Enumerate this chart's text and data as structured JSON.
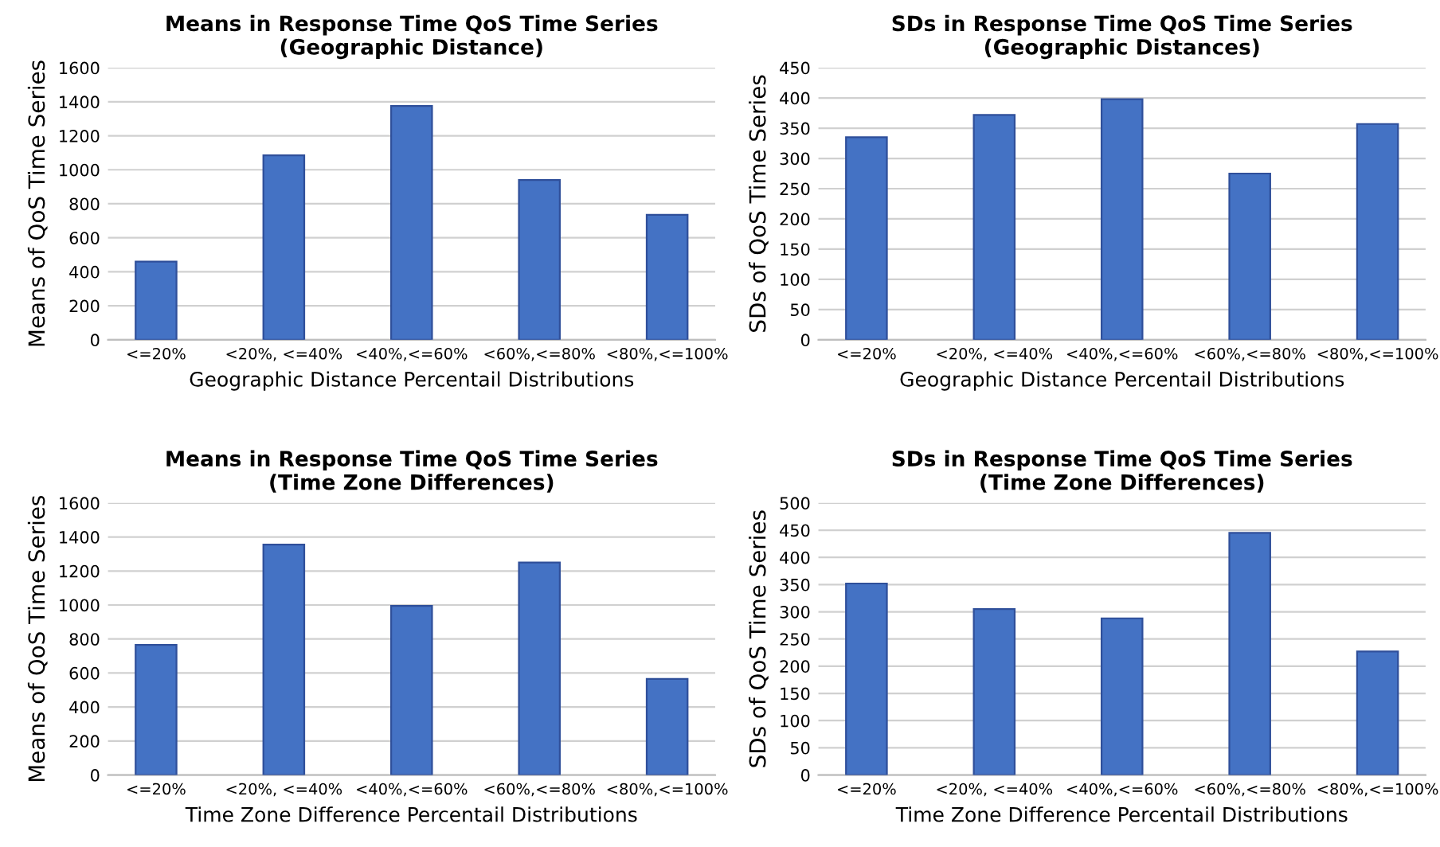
{
  "chart_data": [
    {
      "type": "bar",
      "title": "Means in Response Time QoS Time Series\n(Geographic Distance)",
      "xlabel": "Geographic Distance Percentail Distributions",
      "ylabel": "Means of QoS Time Series",
      "categories": [
        "<=20%",
        "<20%, <=40%",
        "<40%,<=60%",
        "<60%,<=80%",
        "<80%,<=100%"
      ],
      "values": [
        460,
        1085,
        1375,
        940,
        735
      ],
      "color": "#4472c4",
      "ylim": [
        0,
        1600
      ],
      "yticks": [
        0,
        200,
        400,
        600,
        800,
        1000,
        1200,
        1400,
        1600
      ],
      "grid": "y"
    },
    {
      "type": "bar",
      "title": "SDs in Response Time QoS Time Series\n(Geographic Distances)",
      "xlabel": "Geographic Distance Percentail Distributions",
      "ylabel": "SDs of QoS Time Series",
      "categories": [
        "<=20%",
        "<20%, <=40%",
        "<40%,<=60%",
        "<60%,<=80%",
        "<80%,<=100%"
      ],
      "values": [
        335,
        372,
        398,
        275,
        357
      ],
      "color": "#4472c4",
      "ylim": [
        0,
        450
      ],
      "yticks": [
        0,
        50,
        100,
        150,
        200,
        250,
        300,
        350,
        400,
        450
      ],
      "grid": "y"
    },
    {
      "type": "bar",
      "title": "Means in Response Time QoS Time Series\n(Time Zone Differences)",
      "xlabel": "Time Zone Difference Percentail Distributions",
      "ylabel": "Means of QoS Time Series",
      "categories": [
        "<=20%",
        "<20%, <=40%",
        "<40%,<=60%",
        "<60%,<=80%",
        "<80%,<=100%"
      ],
      "values": [
        765,
        1355,
        995,
        1250,
        565
      ],
      "color": "#4472c4",
      "ylim": [
        0,
        1600
      ],
      "yticks": [
        0,
        200,
        400,
        600,
        800,
        1000,
        1200,
        1400,
        1600
      ],
      "grid": "y"
    },
    {
      "type": "bar",
      "title": "SDs in Response Time QoS Time Series\n(Time Zone Differences)",
      "xlabel": "Time Zone Difference Percentail Distributions",
      "ylabel": "SDs of QoS Time Series",
      "categories": [
        "<=20%",
        "<20%, <=40%",
        "<40%,<=60%",
        "<60%,<=80%",
        "<80%,<=100%"
      ],
      "values": [
        352,
        305,
        288,
        445,
        227
      ],
      "color": "#4472c4",
      "ylim": [
        0,
        500
      ],
      "yticks": [
        0,
        50,
        100,
        150,
        200,
        250,
        300,
        350,
        400,
        450,
        500
      ],
      "grid": "y"
    }
  ]
}
